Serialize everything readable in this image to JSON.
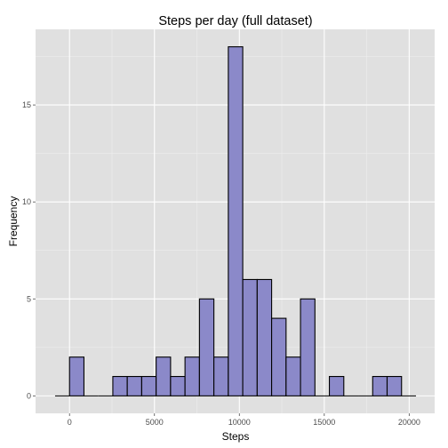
{
  "chart_data": {
    "type": "bar",
    "title": "Steps per day (full dataset)",
    "xlabel": "Steps",
    "ylabel": "Frequency",
    "bin_width": 850,
    "bins": [
      {
        "start": -850,
        "end": 0,
        "count": 0
      },
      {
        "start": 0,
        "end": 850,
        "count": 2
      },
      {
        "start": 850,
        "end": 1700,
        "count": 0
      },
      {
        "start": 1700,
        "end": 2550,
        "count": 0
      },
      {
        "start": 2550,
        "end": 3400,
        "count": 1
      },
      {
        "start": 3400,
        "end": 4250,
        "count": 1
      },
      {
        "start": 4250,
        "end": 5100,
        "count": 1
      },
      {
        "start": 5100,
        "end": 5950,
        "count": 2
      },
      {
        "start": 5950,
        "end": 6800,
        "count": 1
      },
      {
        "start": 6800,
        "end": 7650,
        "count": 2
      },
      {
        "start": 7650,
        "end": 8500,
        "count": 5
      },
      {
        "start": 8500,
        "end": 9350,
        "count": 2
      },
      {
        "start": 9350,
        "end": 10200,
        "count": 18
      },
      {
        "start": 10200,
        "end": 11050,
        "count": 6
      },
      {
        "start": 11050,
        "end": 11900,
        "count": 6
      },
      {
        "start": 11900,
        "end": 12750,
        "count": 4
      },
      {
        "start": 12750,
        "end": 13600,
        "count": 2
      },
      {
        "start": 13600,
        "end": 14450,
        "count": 5
      },
      {
        "start": 14450,
        "end": 15300,
        "count": 0
      },
      {
        "start": 15300,
        "end": 16150,
        "count": 1
      },
      {
        "start": 16150,
        "end": 17000,
        "count": 0
      },
      {
        "start": 17000,
        "end": 17850,
        "count": 0
      },
      {
        "start": 17850,
        "end": 18700,
        "count": 1
      },
      {
        "start": 18700,
        "end": 19550,
        "count": 1
      },
      {
        "start": 19550,
        "end": 20400,
        "count": 0
      }
    ],
    "xlim": [
      -2000,
      21500
    ],
    "ylim": [
      -0.9,
      18.9
    ],
    "x_ticks": [
      0,
      5000,
      10000,
      15000,
      20000
    ],
    "x_tick_labels": [
      "0",
      "5000",
      "10000",
      "15000",
      "20000"
    ],
    "y_ticks": [
      0,
      5,
      10,
      15
    ],
    "y_tick_labels": [
      "0",
      "5",
      "10",
      "15"
    ],
    "grid": true,
    "colors": {
      "panel_background": "#e0e0e0",
      "grid_major": "#ffffff",
      "grid_minor": "#f0f0f0",
      "bar_fill": "#8b89c9",
      "bar_outline": "#000000",
      "tick_label": "#4d4d4d"
    }
  }
}
